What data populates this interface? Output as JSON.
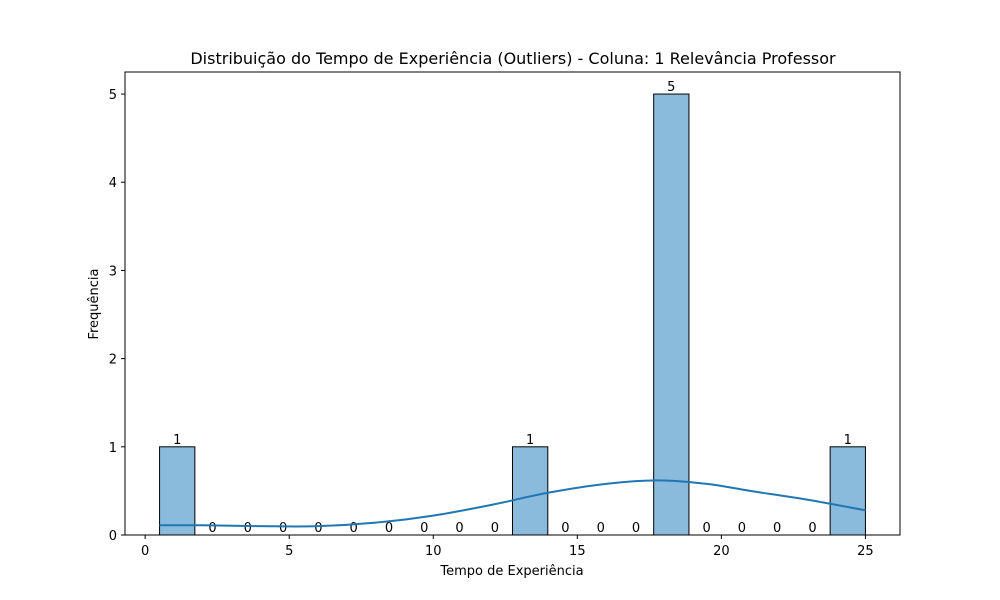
{
  "chart_data": {
    "type": "bar",
    "title": "Distribuição do Tempo de Experiência (Outliers) - Coluna: 1 Relevância Professor",
    "xlabel": "Tempo de Experiência",
    "ylabel": "Frequência",
    "x_ticks": [
      "0",
      "5",
      "10",
      "15",
      "20",
      "25"
    ],
    "y_ticks": [
      "0",
      "1",
      "2",
      "3",
      "4",
      "5"
    ],
    "xlim": [
      -0.7,
      26.2
    ],
    "ylim": [
      0,
      5.25
    ],
    "bin_edges": [
      0.5,
      1.725,
      2.95,
      4.175,
      5.4,
      6.625,
      7.85,
      9.075,
      10.3,
      11.525,
      12.75,
      13.975,
      15.2,
      16.425,
      17.65,
      18.875,
      20.1,
      21.325,
      22.55,
      23.775,
      25.0
    ],
    "values": [
      1,
      0,
      0,
      0,
      0,
      0,
      0,
      0,
      0,
      0,
      1,
      0,
      0,
      0,
      5,
      0,
      0,
      0,
      0,
      1
    ],
    "bar_color": "#8bbbdc",
    "bar_edge_color": "#000000",
    "kde": {
      "name": "",
      "color": "#1f77b4",
      "x": [
        0.5,
        2,
        4,
        6,
        8,
        10,
        12,
        14,
        16,
        17.8,
        19.5,
        21,
        23,
        25
      ],
      "y": [
        0.11,
        0.11,
        0.1,
        0.1,
        0.14,
        0.22,
        0.34,
        0.48,
        0.58,
        0.62,
        0.58,
        0.5,
        0.4,
        0.28
      ]
    }
  }
}
